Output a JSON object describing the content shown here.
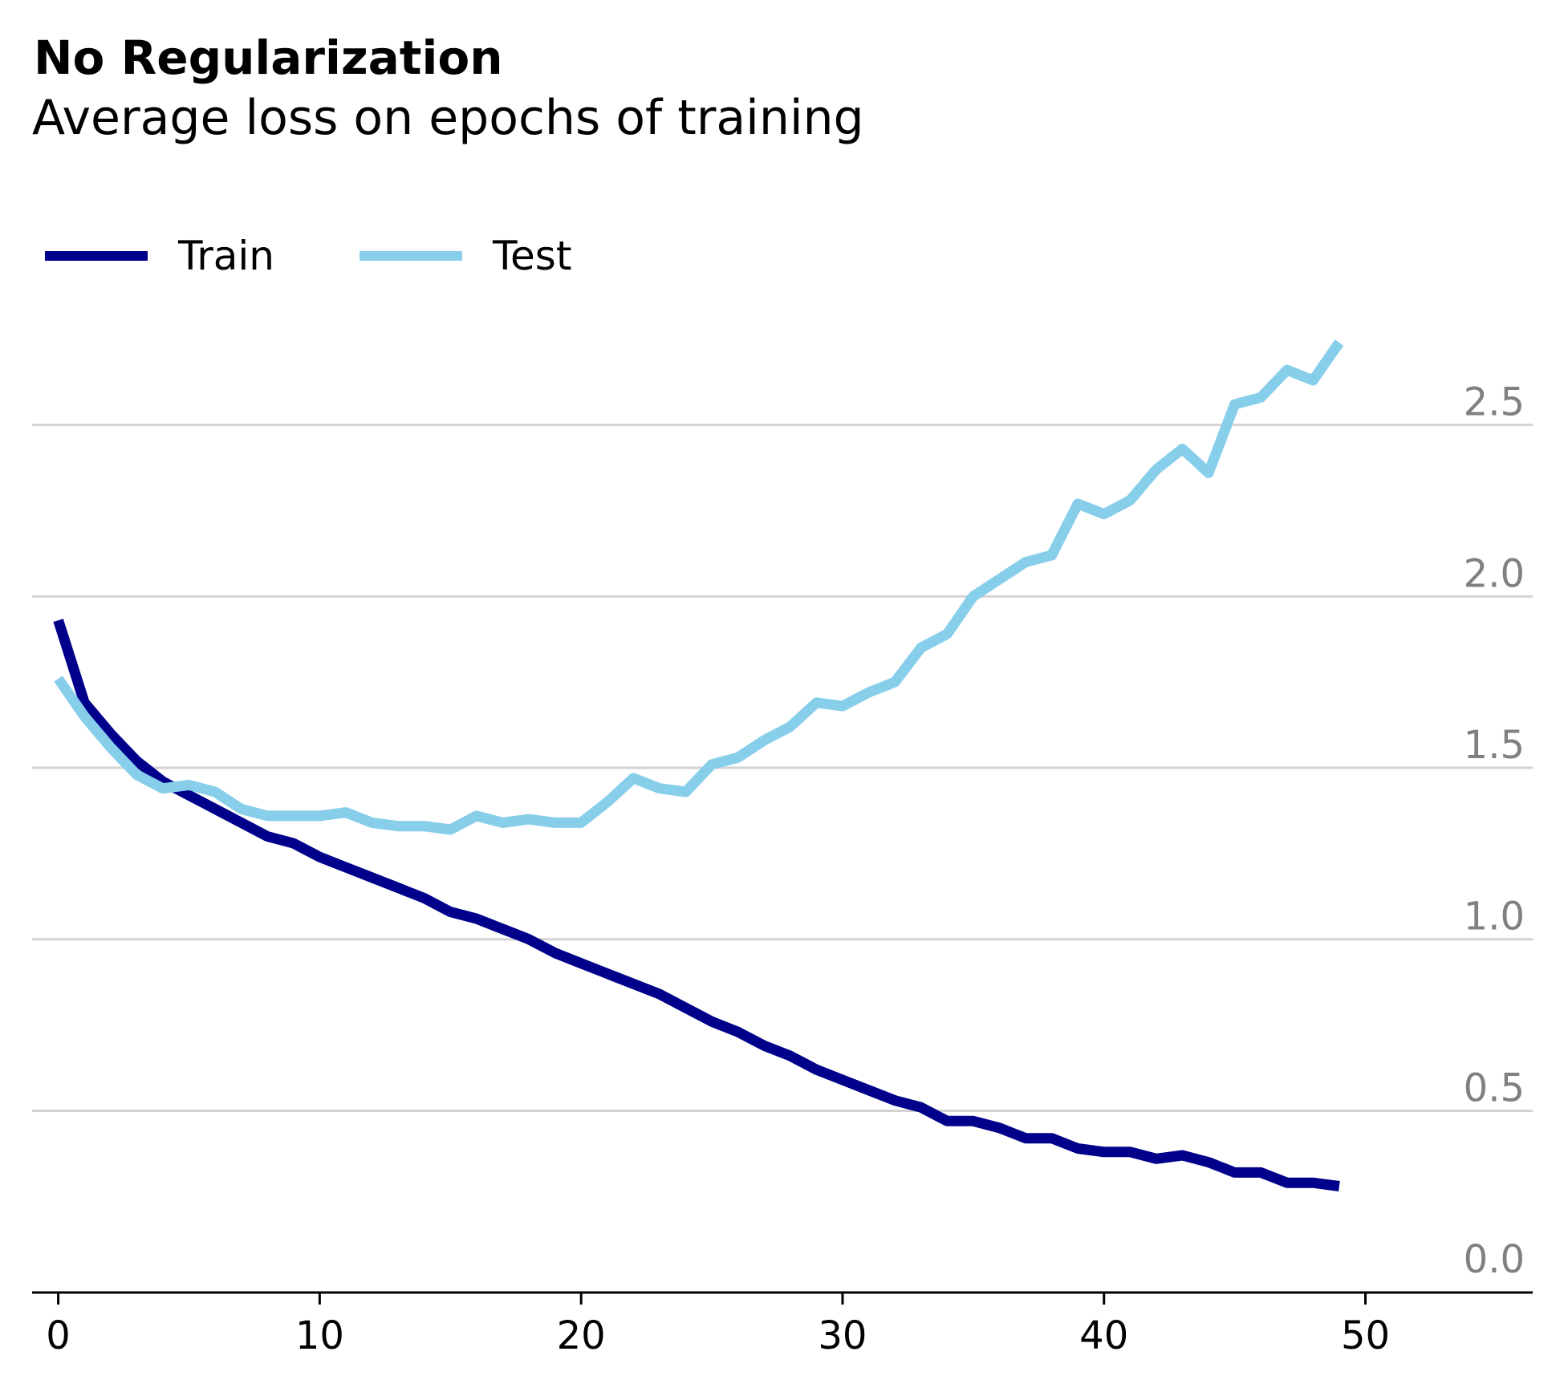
{
  "title": "No Regularization",
  "subtitle": "Average loss on epochs of training",
  "colors": {
    "train": "#00008b",
    "test": "#87ceeb",
    "grid": "#d3d3d3",
    "ytick": "#808080"
  },
  "chart_data": {
    "type": "line",
    "title": "No Regularization",
    "subtitle": "Average loss on epochs of training",
    "xlabel": "",
    "ylabel": "",
    "xlim": [
      -1,
      56.4
    ],
    "ylim": [
      -0.03,
      2.85
    ],
    "xticks": [
      0,
      10,
      20,
      30,
      40,
      50
    ],
    "xtick_labels": [
      "0",
      "10",
      "20",
      "30",
      "40",
      "50"
    ],
    "yticks": [
      0.0,
      0.5,
      1.0,
      1.5,
      2.0,
      2.5
    ],
    "ytick_labels": [
      "0.0",
      "0.5",
      "1.0",
      "1.5",
      "2.0",
      "2.5"
    ],
    "grid": "horizontal",
    "y_axis_position": "right",
    "legend_position": "top-left",
    "x": [
      0,
      1,
      2,
      3,
      4,
      5,
      6,
      7,
      8,
      9,
      10,
      11,
      12,
      13,
      14,
      15,
      16,
      17,
      18,
      19,
      20,
      21,
      22,
      23,
      24,
      25,
      26,
      27,
      28,
      29,
      30,
      31,
      32,
      33,
      34,
      35,
      36,
      37,
      38,
      39,
      40,
      41,
      42,
      43,
      44,
      45,
      46,
      47,
      48,
      49
    ],
    "series": [
      {
        "name": "Train",
        "color": "#00008b",
        "values": [
          1.93,
          1.69,
          1.6,
          1.52,
          1.46,
          1.42,
          1.38,
          1.34,
          1.3,
          1.28,
          1.24,
          1.21,
          1.18,
          1.15,
          1.12,
          1.08,
          1.06,
          1.03,
          1.0,
          0.96,
          0.93,
          0.9,
          0.87,
          0.84,
          0.8,
          0.76,
          0.73,
          0.69,
          0.66,
          0.62,
          0.59,
          0.56,
          0.53,
          0.51,
          0.47,
          0.47,
          0.45,
          0.42,
          0.42,
          0.39,
          0.38,
          0.38,
          0.36,
          0.37,
          0.35,
          0.32,
          0.32,
          0.29,
          0.29,
          0.28
        ]
      },
      {
        "name": "Test",
        "color": "#87ceeb",
        "values": [
          1.76,
          1.65,
          1.56,
          1.48,
          1.44,
          1.45,
          1.43,
          1.38,
          1.36,
          1.36,
          1.36,
          1.37,
          1.34,
          1.33,
          1.33,
          1.32,
          1.36,
          1.34,
          1.35,
          1.34,
          1.34,
          1.4,
          1.47,
          1.44,
          1.43,
          1.51,
          1.53,
          1.58,
          1.62,
          1.69,
          1.68,
          1.72,
          1.75,
          1.85,
          1.89,
          2.0,
          2.05,
          2.1,
          2.12,
          2.27,
          2.24,
          2.28,
          2.37,
          2.43,
          2.36,
          2.56,
          2.58,
          2.66,
          2.63,
          2.74
        ]
      }
    ]
  }
}
